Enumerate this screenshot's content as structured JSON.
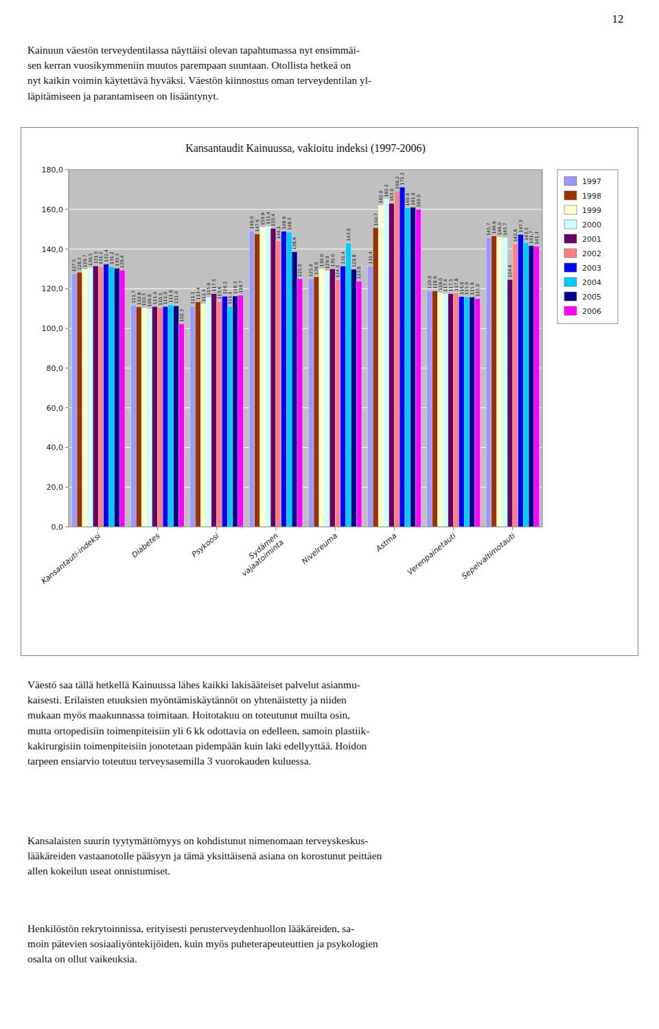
{
  "page_number": "12",
  "paragraphs": [
    "Kainuun väestön terveydentilassa näyttäisi olevan tapahtumassa nyt ensimmäi-\nsen kerran vuosikymmeniin muutos parempaan suuntaan. Otollista hetkeä on\nnyt kaikin voimin käytettävä hyväksi. Väestön kiinnostus oman terveydentilan yl-\nläpitämiseen ja parantamiseen on lisääntynyt.",
    "Väestö saa tällä hetkellä Kainuussa lähes kaikki lakisääteiset palvelut asianmu-\nkaisesti. Erilaisten etuuksien myöntämiskäytännöt on yhtenäistetty ja niiden\nmukaan myös maakunnassa toimitaan. Hoitotakuu on toteutunut muilta osin,\nmutta ortopedisiin toimenpiteisiin yli 6 kk odottavia on edelleen, samoin plastiik-\nkakirurgisiin toimenpiteisiin jonotetaan pidempään kuin laki edellyyttää. Hoidon\ntarpeen ensiarvio toteutuu terveysasemilla 3 vuorokauden kuluessa.",
    "Kansalaisten suurin tyytymättömyys on kohdistunut nimenomaan terveyskeskus-\nlääkäreiden vastaanotolle pääsyyn ja tämä yksittäisenä asiana on korostunut peittäen\nallen kokeilun useat onnistumiset.",
    "Henkilöstön rekrytoinnissa, erityisesti perusterveydenhuollon lääkäreiden, sa-\nmoin pätevien sosiaaliyöntekijöiden, kuin myös puheterapeuteuttien ja psykologien\nosalta on ollut vaikeuksia."
  ],
  "chart_data": {
    "type": "bar",
    "title": "Kansantaudit Kainuussa, vakioitu indeksi (1997-2006)",
    "categories": [
      "Kansantauti-indeksi",
      "Diabetes",
      "Psykoosi",
      "Sydämen\nvajaatoiminta",
      "Nivelreuma",
      "Astma",
      "Verenpainetauti",
      "Sepelvaltimotauti"
    ],
    "series": [
      {
        "name": "1997",
        "color": "#9999FF",
        "values": [
          127.5,
          111.7,
          111.1,
          149.0,
          125.0,
          131.4,
          119.0,
          145.7
        ],
        "value_labels": [
          "127.5",
          "111.7",
          "111.1",
          "149.0",
          "125.0",
          "131.4",
          "119.0",
          "145.7"
        ]
      },
      {
        "name": "1998",
        "color": "#993300",
        "values": [
          128.3,
          110.8,
          113.4,
          147.6,
          126.0,
          150.7,
          118.9,
          146.6
        ],
        "value_labels": [
          "128.3",
          "110.8",
          "113.4",
          "147.6",
          "126.0",
          "150.7",
          "118.9",
          "146.6"
        ]
      },
      {
        "name": "1999",
        "color": "#FFFFCC",
        "values": [
          129.7,
          110.3,
          112.4,
          150.9,
          130.0,
          162.0,
          118.0,
          146.0
        ],
        "value_labels": [
          "129.7",
          "110.3",
          "112.4",
          "150.9",
          "130.0",
          "162.0",
          "118.0",
          "146.0"
        ]
      },
      {
        "name": "2000",
        "color": "#CCFFFF",
        "values": [
          130.5,
          109.8,
          115.6,
          151.4,
          129.0,
          165.2,
          117.4,
          145.7
        ],
        "value_labels": [
          "130.5",
          "109.8",
          "115.6",
          "151.4",
          "129.0",
          "165.2",
          "117.4",
          "145.7"
        ]
      },
      {
        "name": "2001",
        "color": "#660066",
        "values": [
          131.5,
          111.0,
          117.5,
          150.4,
          130.0,
          163.0,
          117.5,
          124.6
        ],
        "value_labels": [
          "131.5",
          "111.0",
          "117.5",
          "150.4",
          "130.0",
          "163.0",
          "117.5",
          "124.6"
        ]
      },
      {
        "name": "2002",
        "color": "#FF8080",
        "values": [
          131.2,
          110.5,
          113.6,
          144.1,
          124.5,
          169.2,
          117.8,
          142.6
        ],
        "value_labels": [
          "131.2",
          "110.5",
          "113.6",
          "144.1",
          "124.5",
          "169.2",
          "117.8",
          "142.6"
        ]
      },
      {
        "name": "2003",
        "color": "#0000FF",
        "values": [
          132.4,
          111.0,
          116.2,
          148.9,
          131.4,
          171.2,
          116.0,
          147.3
        ],
        "value_labels": [
          "132.4",
          "111.0",
          "116.2",
          "148.9",
          "131.4",
          "171.2",
          "116.0",
          "147.3"
        ]
      },
      {
        "name": "2004",
        "color": "#00CCFF",
        "values": [
          131.2,
          111.9,
          111.1,
          148.5,
          143.0,
          160.8,
          115.9,
          143.3
        ],
        "value_labels": [
          "131.2",
          "111.9",
          "111.1",
          "148.5",
          "143.0",
          "160.8",
          "115.9",
          "143.3"
        ]
      },
      {
        "name": "2005",
        "color": "#00008B",
        "values": [
          130.3,
          111.4,
          116.3,
          138.6,
          129.8,
          161.0,
          115.8,
          141.7
        ],
        "value_labels": [
          "130.3",
          "111.4",
          "116.3",
          "138.6",
          "129.8",
          "161.0",
          "115.8",
          "141.7"
        ]
      },
      {
        "name": "2006",
        "color": "#FF00FF",
        "values": [
          129.4,
          102.3,
          116.7,
          125.0,
          123.8,
          160.0,
          115.0,
          141.3
        ],
        "value_labels": [
          "129.4",
          "102.3",
          "116.7",
          "125.0",
          "123.8",
          "160.0",
          "115.0",
          "141.3"
        ]
      }
    ],
    "ylim": [
      0,
      180
    ],
    "yticks": [
      {
        "value": 0,
        "label": "0,0"
      },
      {
        "value": 20,
        "label": "20,0"
      },
      {
        "value": 40,
        "label": "40,0"
      },
      {
        "value": 60,
        "label": "60,0"
      },
      {
        "value": 80,
        "label": "80,0"
      },
      {
        "value": 100,
        "label": "100,0"
      },
      {
        "value": 120,
        "label": "120,0"
      },
      {
        "value": 140,
        "label": "140,0"
      },
      {
        "value": 160,
        "label": "160,0"
      },
      {
        "value": 180,
        "label": "180,0"
      }
    ],
    "grid": true,
    "legend": "right",
    "data_labels": true
  }
}
